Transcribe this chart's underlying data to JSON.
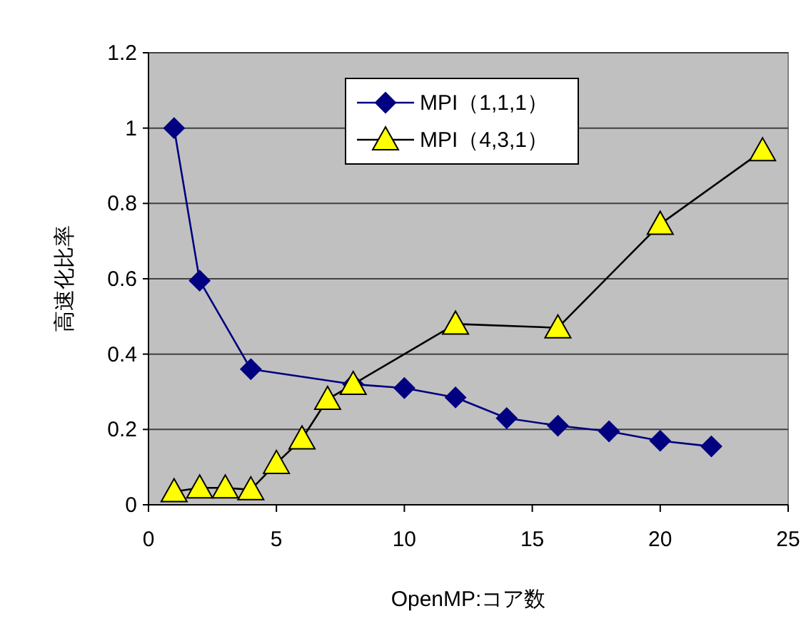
{
  "chart_data": {
    "type": "line",
    "xlabel": "OpenMP:コア数",
    "ylabel": "高速化比率",
    "xlim": [
      0,
      25
    ],
    "ylim": [
      0,
      1.2
    ],
    "xticks": [
      0,
      5,
      10,
      15,
      20,
      25
    ],
    "yticks": [
      0,
      0.2,
      0.4,
      0.6,
      0.8,
      1,
      1.2
    ],
    "grid": "y",
    "legend": "top",
    "series": [
      {
        "name": "MPI（1,1,1）",
        "color": "#000080",
        "marker": "diamond",
        "x": [
          1,
          2,
          4,
          8,
          10,
          12,
          14,
          16,
          18,
          20,
          22
        ],
        "values": [
          1.0,
          0.595,
          0.36,
          0.32,
          0.31,
          0.285,
          0.23,
          0.21,
          0.195,
          0.17,
          0.155
        ]
      },
      {
        "name": "MPI（4,3,1）",
        "color": "#ffff00",
        "marker": "triangle",
        "x": [
          1,
          2,
          3,
          4,
          5,
          6,
          7,
          8,
          12,
          16,
          20,
          24
        ],
        "values": [
          0.035,
          0.045,
          0.045,
          0.04,
          0.11,
          0.175,
          0.28,
          0.32,
          0.48,
          0.47,
          0.745,
          0.94
        ]
      }
    ]
  }
}
